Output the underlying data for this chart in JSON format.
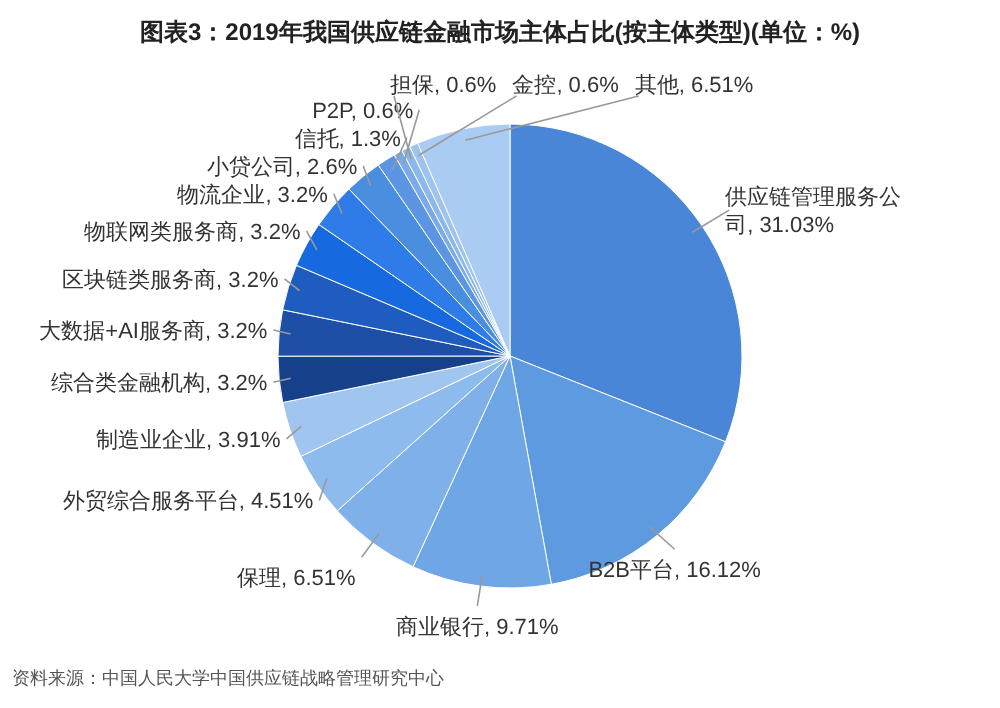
{
  "chart_data": {
    "type": "pie",
    "title": "图表3：2019年我国供应链金融市场主体占比(按主体类型)(单位：%)",
    "categories": [
      "供应链管理服务公司",
      "B2B平台",
      "商业银行",
      "保理",
      "外贸综合服务平台",
      "制造业企业",
      "综合类金融机构",
      "大数据+AI服务商",
      "区块链类服务商",
      "物联网类服务商",
      "物流企业",
      "小贷公司",
      "信托",
      "P2P",
      "担保",
      "金控",
      "其他"
    ],
    "values": [
      31.03,
      16.12,
      9.71,
      6.51,
      4.51,
      3.91,
      3.2,
      3.2,
      3.2,
      3.2,
      3.2,
      2.6,
      1.3,
      0.6,
      0.6,
      0.6,
      6.51
    ],
    "value_labels": [
      "31.03%",
      "16.12%",
      "9.71%",
      "6.51%",
      "4.51%",
      "3.91%",
      "3.2%",
      "3.2%",
      "3.2%",
      "3.2%",
      "3.2%",
      "2.6%",
      "1.3%",
      "0.6%",
      "0.6%",
      "0.6%",
      "6.51%"
    ],
    "colors": [
      "#4a86d8",
      "#5e9ae0",
      "#6fa6e6",
      "#7fb0ea",
      "#8dbbee",
      "#a0c6f0",
      "#17408a",
      "#1d4fa6",
      "#1f5cbf",
      "#1669de",
      "#2f7ce8",
      "#4a8ee0",
      "#5b95e4",
      "#7aaae8",
      "#8db8ec",
      "#9fc3ef",
      "#aacbf2"
    ],
    "legend": false,
    "annotations": [
      "资料来源：中国人民大学中国供应链战略管理研究中心"
    ]
  }
}
